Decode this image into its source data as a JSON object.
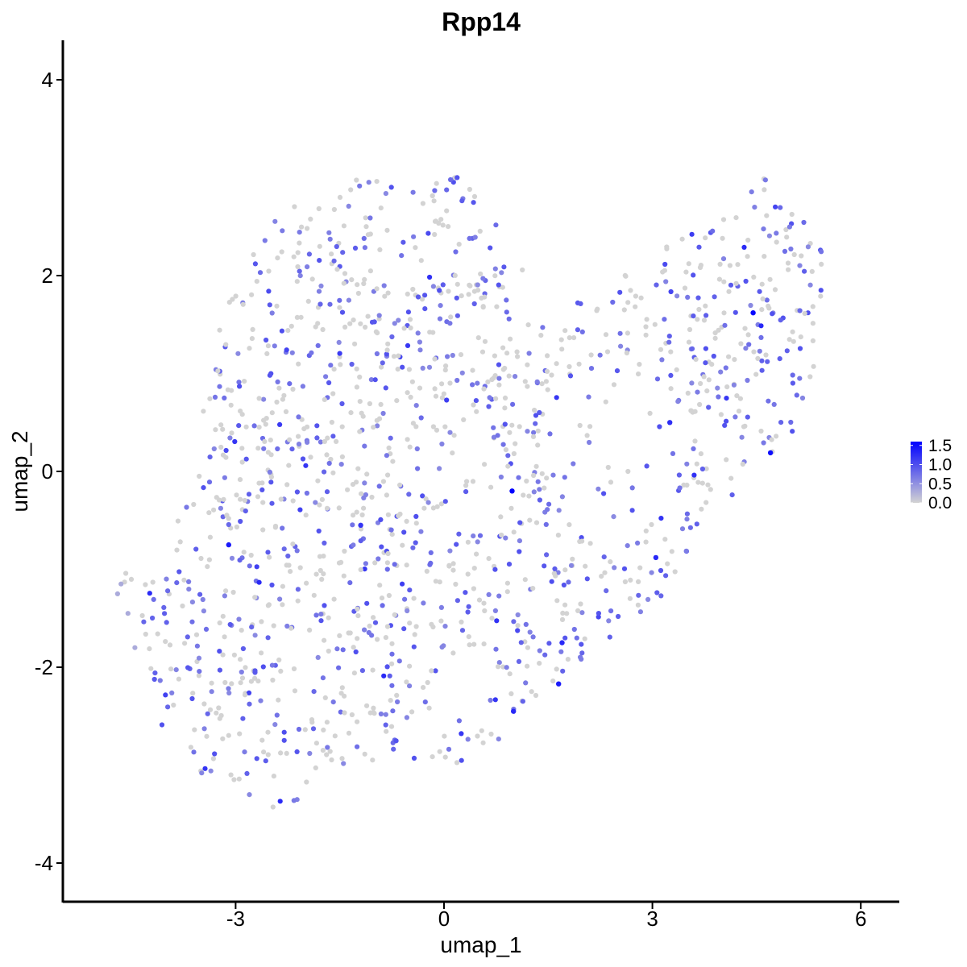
{
  "chart_data": {
    "type": "scatter",
    "title": "Rpp14",
    "xlabel": "umap_1",
    "ylabel": "umap_2",
    "xlim": [
      -5.4,
      6.6
    ],
    "ylim": [
      -4.35,
      4.4
    ],
    "x_ticks": [
      -3,
      0,
      3,
      6
    ],
    "y_ticks": [
      -4,
      -2,
      0,
      2,
      4
    ],
    "x_tick_labels": [
      "-3",
      "0",
      "3",
      "6"
    ],
    "y_tick_labels": [
      "-4",
      "-2",
      "0",
      "2",
      "4"
    ],
    "grid": false,
    "legend": {
      "placement": "right",
      "type": "colorbar",
      "labels": [
        "1.5",
        "1.0",
        "0.5",
        "0.0"
      ],
      "values": [
        1.5,
        1.0,
        0.5,
        0.0
      ],
      "range": [
        0,
        1.6
      ]
    },
    "colors": {
      "low": "#d3d3d3",
      "high": "#0000ff"
    },
    "highlighted_points": [
      {
        "x": 0.98,
        "y": -0.2,
        "value": 1.6
      },
      {
        "x": 4.45,
        "y": 1.62,
        "value": 1.55
      },
      {
        "x": 4.7,
        "y": 0.19,
        "value": 1.5
      },
      {
        "x": -3.1,
        "y": -0.75,
        "value": 1.4
      },
      {
        "x": 1.65,
        "y": -2.17,
        "value": 1.4
      },
      {
        "x": 1.0,
        "y": -2.45,
        "value": 1.3
      },
      {
        "x": 1.7,
        "y": -1.75,
        "value": 1.3
      },
      {
        "x": 3.05,
        "y": -0.88,
        "value": 1.3
      },
      {
        "x": 3.25,
        "y": 0.5,
        "value": 1.25
      },
      {
        "x": -1.2,
        "y": -0.55,
        "value": 1.2
      }
    ]
  }
}
